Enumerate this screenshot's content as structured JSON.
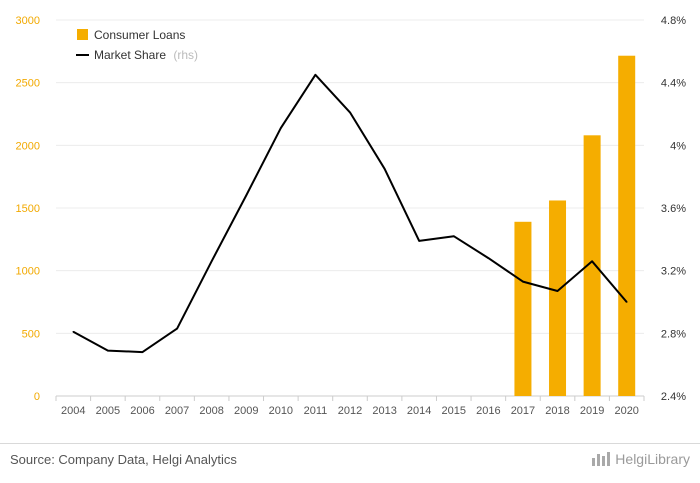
{
  "chart_data": {
    "type": "bar",
    "categories": [
      "2004",
      "2005",
      "2006",
      "2007",
      "2008",
      "2009",
      "2010",
      "2011",
      "2012",
      "2013",
      "2014",
      "2015",
      "2016",
      "2017",
      "2018",
      "2019",
      "2020"
    ],
    "series": [
      {
        "name": "Consumer Loans",
        "type": "bar",
        "axis": "left",
        "color": "#f5ad00",
        "values": [
          null,
          null,
          null,
          null,
          null,
          null,
          null,
          null,
          null,
          null,
          null,
          null,
          null,
          1390,
          1560,
          2080,
          2715
        ]
      },
      {
        "name": "Market Share",
        "type": "line",
        "axis": "right",
        "color": "#000000",
        "values": [
          2.81,
          2.69,
          2.68,
          2.83,
          3.26,
          3.68,
          4.11,
          4.45,
          4.21,
          3.85,
          3.39,
          3.42,
          3.28,
          3.13,
          3.07,
          3.26,
          3.0
        ]
      }
    ],
    "y_left": {
      "lim": [
        0,
        3000
      ],
      "ticks": [
        "0",
        "500",
        "1000",
        "1500",
        "2000",
        "2500",
        "3000"
      ]
    },
    "y_right": {
      "lim": [
        2.4,
        4.8
      ],
      "ticks": [
        "2.4%",
        "2.8%",
        "3.2%",
        "3.6%",
        "4%",
        "4.4%",
        "4.8%"
      ]
    },
    "legend": {
      "position": "top-left",
      "items": [
        {
          "label": "Consumer Loans",
          "suffix": ""
        },
        {
          "label": "Market Share",
          "suffix": "(rhs)"
        }
      ]
    },
    "grid": true
  },
  "footer": {
    "source": "Source: Company Data, Helgi Analytics",
    "brand": "HelgiLibrary"
  }
}
